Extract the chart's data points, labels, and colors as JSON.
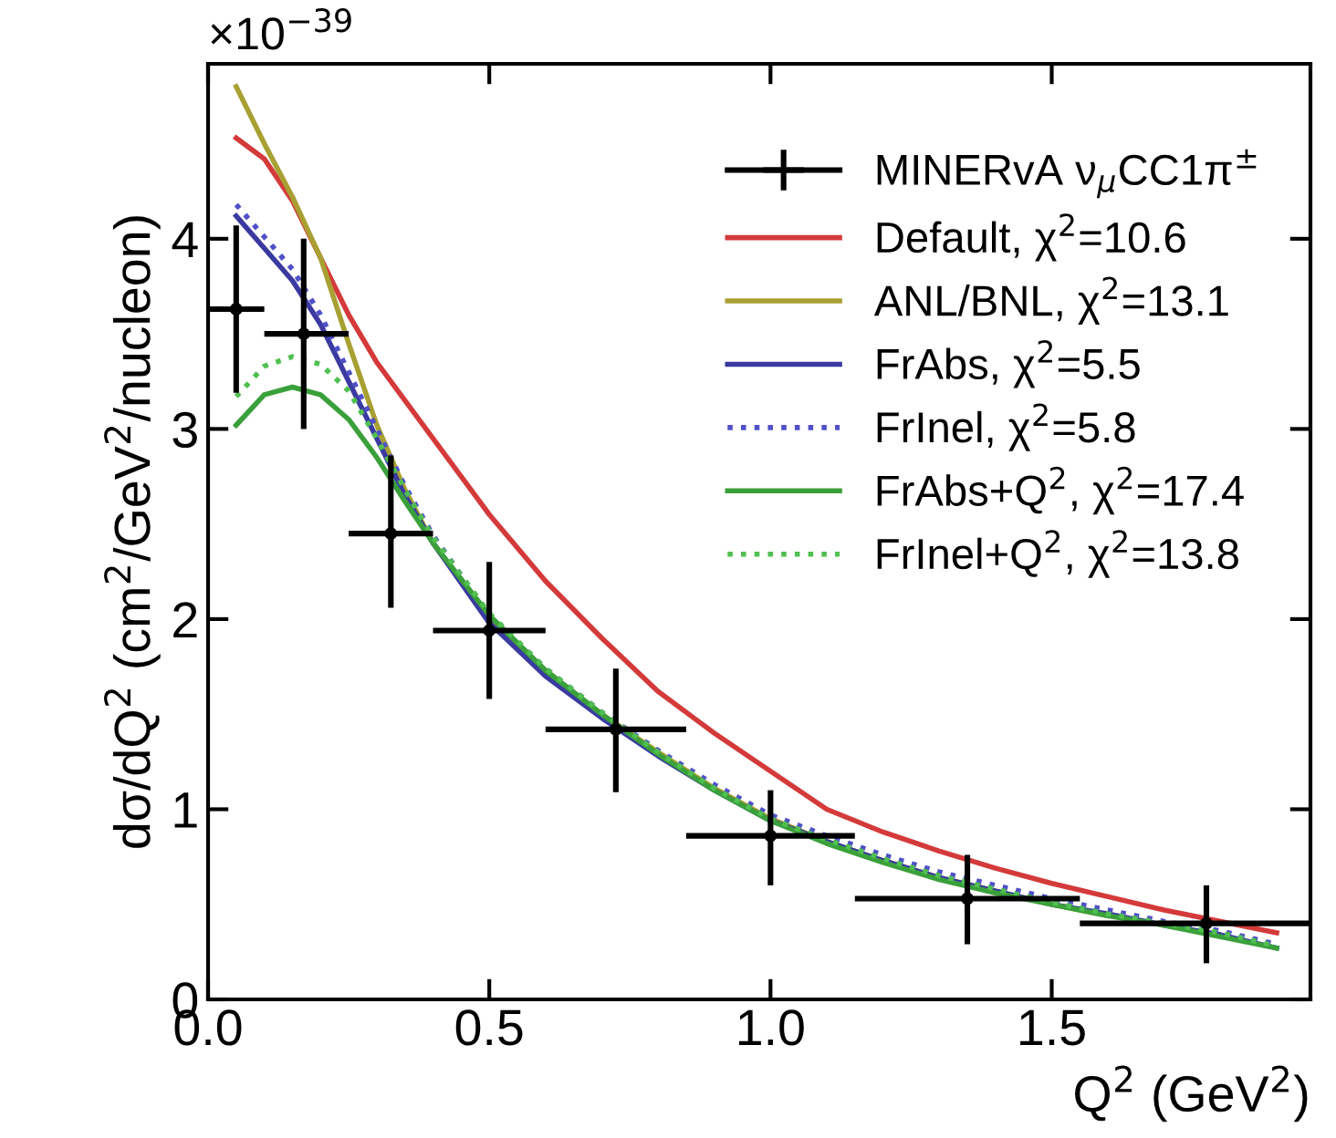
{
  "chart_data": {
    "type": "line",
    "xlabel": "Q$^{2}$ (GeV$^{2}$)",
    "ylabel": "dσ/dQ$^{2}$ (cm$^{2}$/GeV$^{2}$/nucleon)",
    "annotations": [
      "×10$^{−39}$"
    ],
    "xlim": [
      0,
      1.96
    ],
    "xticks": [
      {
        "value": 0,
        "label": "0.0"
      },
      0.5,
      {
        "value": 1,
        "label": "1.0"
      },
      1.5
    ],
    "ylim": [
      0,
      4.92
    ],
    "yticks": [
      0,
      1,
      2,
      3,
      4
    ],
    "legend": "top right",
    "grid": false,
    "series": [
      {
        "name": "MINERvA ν$_{μ}$CC1π$^{±}$",
        "type": "scatter",
        "marker": "circle",
        "color": "#000000",
        "x": [
          0.05,
          0.17,
          0.325,
          0.5,
          0.725,
          1.0,
          1.35,
          1.775
        ],
        "values": [
          3.63,
          3.5,
          2.45,
          1.94,
          1.42,
          0.86,
          0.53,
          0.4
        ],
        "errors": [
          [
            3.19,
            4.07
          ],
          [
            3.0,
            4.0
          ],
          [
            2.06,
            2.86
          ],
          [
            1.58,
            2.3
          ],
          [
            1.09,
            1.74
          ],
          [
            0.6,
            1.1
          ],
          [
            0.29,
            0.76
          ],
          [
            0.19,
            0.6
          ]
        ],
        "xerrors": [
          [
            0,
            0.1
          ],
          [
            0.1,
            0.25
          ],
          [
            0.25,
            0.4
          ],
          [
            0.4,
            0.6
          ],
          [
            0.6,
            0.85
          ],
          [
            0.85,
            1.15
          ],
          [
            1.15,
            1.55
          ],
          [
            1.55,
            1.96
          ]
        ]
      },
      {
        "name": "Default, χ$^{2}$=10.6",
        "color": "#d43a3a",
        "line_style": "solid",
        "x": [
          0.05,
          0.1,
          0.15,
          0.2,
          0.25,
          0.3,
          0.35,
          0.4,
          0.5,
          0.6,
          0.7,
          0.8,
          0.9,
          1.0,
          1.1,
          1.2,
          1.3,
          1.4,
          1.5,
          1.6,
          1.7,
          1.8,
          1.9
        ],
        "values": [
          4.53,
          4.42,
          4.2,
          3.9,
          3.6,
          3.35,
          3.15,
          2.95,
          2.55,
          2.2,
          1.9,
          1.62,
          1.4,
          1.2,
          1.0,
          0.88,
          0.78,
          0.69,
          0.61,
          0.54,
          0.47,
          0.41,
          0.35
        ]
      },
      {
        "name": "ANL/BNL, χ$^{2}$=13.1",
        "color": "#a8a032",
        "line_style": "solid",
        "x": [
          0.05,
          0.1,
          0.15,
          0.2,
          0.25,
          0.3,
          0.35,
          0.4,
          0.5,
          0.6,
          0.7,
          0.8,
          0.9,
          1.0,
          1.1,
          1.2,
          1.3,
          1.4,
          1.5,
          1.6
        ],
        "values": [
          4.8,
          4.5,
          4.22,
          3.9,
          3.45,
          3.02,
          2.68,
          2.4,
          2.0,
          1.73,
          1.5,
          1.3,
          1.11,
          0.95,
          0.83,
          0.73,
          0.64,
          0.57,
          0.5,
          0.44
        ]
      },
      {
        "name": "FrAbs, χ$^{2}$=5.5",
        "color": "#3a3aa0",
        "line_style": "solid",
        "x": [
          0.05,
          0.1,
          0.15,
          0.2,
          0.25,
          0.3,
          0.35,
          0.4,
          0.5,
          0.6,
          0.7,
          0.8,
          0.9,
          1.0,
          1.1,
          1.2,
          1.3,
          1.4,
          1.5,
          1.6,
          1.7,
          1.8,
          1.9
        ],
        "values": [
          4.12,
          3.95,
          3.78,
          3.55,
          3.25,
          2.95,
          2.65,
          2.4,
          1.98,
          1.7,
          1.48,
          1.28,
          1.1,
          0.94,
          0.83,
          0.73,
          0.64,
          0.57,
          0.5,
          0.45,
          0.39,
          0.34,
          0.27
        ]
      },
      {
        "name": "FrInel, χ$^{2}$=5.8",
        "color": "#5050c8",
        "line_style": "dotted",
        "x": [
          0.05,
          0.1,
          0.15,
          0.2,
          0.25,
          0.3,
          0.35,
          0.4,
          0.5,
          0.6,
          0.7,
          0.8,
          0.9,
          1.0,
          1.1,
          1.2,
          1.3,
          1.4,
          1.5,
          1.6,
          1.7,
          1.8,
          1.9
        ],
        "values": [
          4.18,
          4.01,
          3.84,
          3.6,
          3.3,
          3.0,
          2.7,
          2.44,
          2.02,
          1.74,
          1.51,
          1.31,
          1.13,
          0.97,
          0.86,
          0.76,
          0.67,
          0.6,
          0.53,
          0.47,
          0.41,
          0.36,
          0.29
        ]
      },
      {
        "name": "FrAbs+Q$^{2}$, χ$^{2}$=17.4",
        "color": "#3aa03a",
        "line_style": "solid",
        "x": [
          0.05,
          0.1,
          0.15,
          0.2,
          0.25,
          0.3,
          0.35,
          0.4,
          0.5,
          0.6,
          0.7,
          0.8,
          0.9,
          1.0,
          1.1,
          1.2,
          1.3,
          1.4,
          1.5,
          1.6,
          1.7,
          1.8,
          1.9
        ],
        "values": [
          3.02,
          3.18,
          3.22,
          3.18,
          3.05,
          2.85,
          2.62,
          2.4,
          2.02,
          1.73,
          1.5,
          1.29,
          1.1,
          0.94,
          0.82,
          0.72,
          0.63,
          0.56,
          0.5,
          0.44,
          0.39,
          0.33,
          0.27
        ]
      },
      {
        "name": "FrInel+Q$^{2}$, χ$^{2}$=13.8",
        "color": "#50c050",
        "line_style": "dotted",
        "x": [
          0.05,
          0.1,
          0.15,
          0.2,
          0.25,
          0.3,
          0.35,
          0.4,
          0.5,
          0.6,
          0.7,
          0.8,
          0.9,
          1.0,
          1.1,
          1.2,
          1.3,
          1.4,
          1.5,
          1.6,
          1.7,
          1.8,
          1.9
        ],
        "values": [
          3.17,
          3.33,
          3.38,
          3.34,
          3.2,
          2.95,
          2.68,
          2.43,
          2.03,
          1.74,
          1.51,
          1.3,
          1.11,
          0.95,
          0.84,
          0.74,
          0.65,
          0.58,
          0.51,
          0.45,
          0.4,
          0.35,
          0.28
        ]
      }
    ]
  }
}
